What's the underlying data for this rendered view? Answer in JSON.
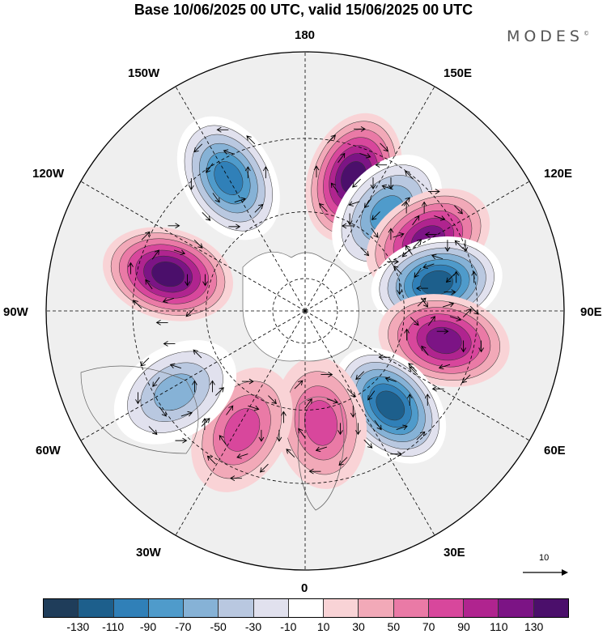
{
  "title": "Base 10/06/2025 00 UTC, valid 15/06/2025 00 UTC",
  "brand": "MODES",
  "brand_mark": "©",
  "longitude_labels": {
    "lon_180": "180",
    "lon_150e": "150E",
    "lon_120e": "120E",
    "lon_90e": "90E",
    "lon_60e": "60E",
    "lon_30e": "30E",
    "lon_0": "0",
    "lon_30w": "30W",
    "lon_60w": "60W",
    "lon_90w": "90W",
    "lon_120w": "120W",
    "lon_150w": "150W"
  },
  "reference_vector": {
    "label": "10"
  },
  "colorbar": {
    "colors": [
      "#1f3d5a",
      "#1d5f8c",
      "#3080b8",
      "#4f9bcb",
      "#86b2d6",
      "#b9c8e0",
      "#e1e1ee",
      "#ffffff",
      "#f9d3d6",
      "#f2a9b8",
      "#ea7aa6",
      "#d8479c",
      "#b0248f",
      "#7c1485",
      "#4b0f6b"
    ],
    "ticks": [
      "-130",
      "-110",
      "-90",
      "-70",
      "-50",
      "-30",
      "-10",
      "10",
      "30",
      "50",
      "70",
      "90",
      "110",
      "130"
    ]
  },
  "anomaly_centers": [
    {
      "lon": 160,
      "lat": 48,
      "value": 115
    },
    {
      "lon": -150,
      "lat": 45,
      "value": -95
    },
    {
      "lon": 140,
      "lat": 52,
      "value": -80
    },
    {
      "lon": 120,
      "lat": 48,
      "value": 90
    },
    {
      "lon": 102,
      "lat": 50,
      "value": -120
    },
    {
      "lon": 78,
      "lat": 48,
      "value": 90
    },
    {
      "lon": 42,
      "lat": 52,
      "value": -110
    },
    {
      "lon": 8,
      "lat": 56,
      "value": 50
    },
    {
      "lon": -28,
      "lat": 50,
      "value": 55
    },
    {
      "lon": -58,
      "lat": 45,
      "value": -60
    },
    {
      "lon": -105,
      "lat": 48,
      "value": 115
    }
  ]
}
